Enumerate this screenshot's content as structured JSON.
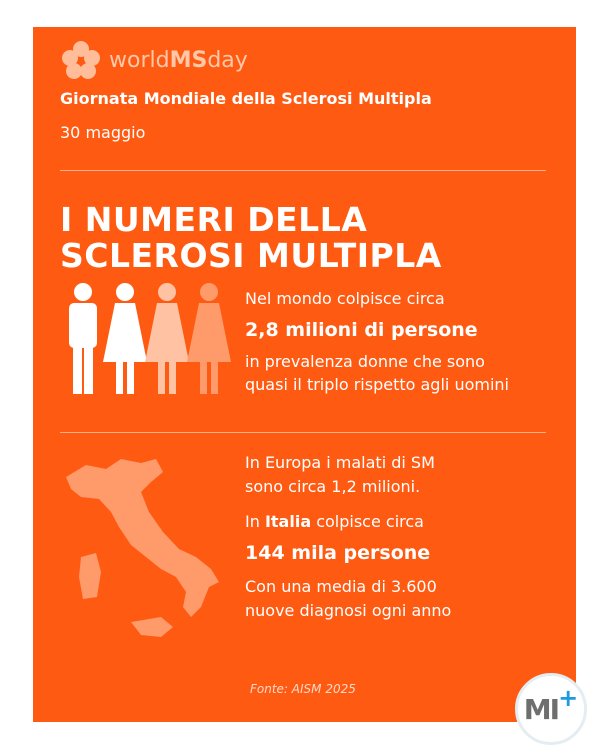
{
  "logo": {
    "text_light1": "world",
    "text_bold": "MS",
    "text_light2": "day"
  },
  "header": {
    "subtitle": "Giornata Mondiale della Sclerosi Multipla",
    "date": "30 maggio"
  },
  "title": {
    "line1": "I NUMERI DELLA",
    "line2": "SCLEROSI MULTIPLA"
  },
  "world": {
    "line1": "Nel mondo colpisce circa",
    "highlight": "2,8 milioni di persone",
    "line3": "in prevalenza donne che sono",
    "line4": "quasi il triplo rispetto agli uomini"
  },
  "italy": {
    "europe1": "In Europa i malati di SM",
    "europe2": "sono circa 1,2 milioni.",
    "italy_prefix": "In ",
    "italy_bold": "Italia",
    "italy_suffix": " colpisce circa",
    "highlight": "144 mila persone",
    "line5": "Con una media di 3.600",
    "line6": "nuove diagnosi ogni anno"
  },
  "source": "Fonte: AISM 2025",
  "badge": {
    "text": "MI"
  },
  "colors": {
    "background": "#FF5A12",
    "badge_gray": "#6E6E6E",
    "badge_blue": "#1E9BE0"
  }
}
